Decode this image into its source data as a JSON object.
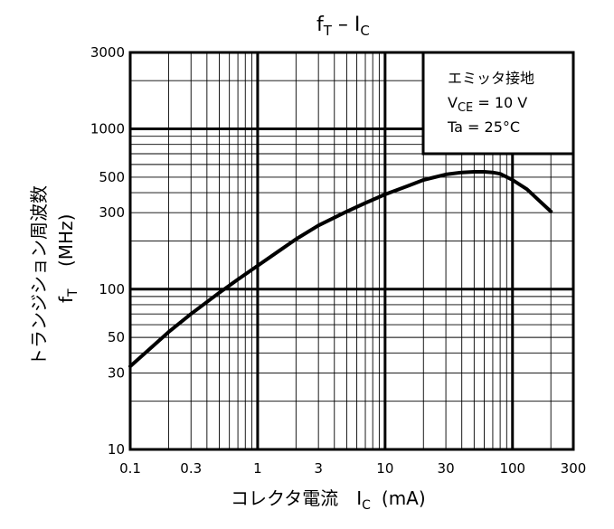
{
  "chart_data": {
    "type": "line",
    "title": "fT – IC",
    "title_main": "f",
    "title_sub1": "T",
    "title_dash": " – I",
    "title_sub2": "C",
    "xlabel_main": "コレクタ電流　I",
    "xlabel_sub": "C",
    "xlabel_unit": "(mA)",
    "ylabel_line1": "トランジション周波数",
    "ylabel_line2": "(MHz)",
    "ylabel_sym": "f",
    "ylabel_sym_sub": "T",
    "x_scale": "log",
    "y_scale": "log",
    "xlim": [
      0.1,
      300
    ],
    "ylim": [
      10,
      3000
    ],
    "x_ticks": [
      {
        "value": 0.1,
        "label": "0.1"
      },
      {
        "value": 0.3,
        "label": "0.3"
      },
      {
        "value": 1,
        "label": "1"
      },
      {
        "value": 3,
        "label": "3"
      },
      {
        "value": 10,
        "label": "10"
      },
      {
        "value": 30,
        "label": "30"
      },
      {
        "value": 100,
        "label": "100"
      },
      {
        "value": 300,
        "label": "300"
      }
    ],
    "y_ticks": [
      {
        "value": 10,
        "label": "10"
      },
      {
        "value": 30,
        "label": "30"
      },
      {
        "value": 50,
        "label": "50"
      },
      {
        "value": 100,
        "label": "100"
      },
      {
        "value": 300,
        "label": "300"
      },
      {
        "value": 500,
        "label": "500"
      },
      {
        "value": 1000,
        "label": "1000"
      },
      {
        "value": 3000,
        "label": "3000"
      }
    ],
    "grid": true,
    "legend_position": "top-right",
    "conditions": [
      {
        "text": "エミッタ接地"
      },
      {
        "main": "V",
        "sub": "CE",
        "rest": " = 10 V"
      },
      {
        "text": "Ta = 25°C"
      }
    ],
    "series": [
      {
        "x": [
          0.1,
          0.15,
          0.2,
          0.3,
          0.5,
          0.7,
          1,
          1.5,
          2,
          3,
          5,
          7,
          10,
          15,
          20,
          30,
          40,
          50,
          60,
          70,
          80,
          100,
          130,
          160,
          200
        ],
        "y": [
          33,
          44,
          54,
          70,
          95,
          115,
          140,
          175,
          205,
          250,
          305,
          345,
          390,
          440,
          480,
          520,
          535,
          540,
          540,
          535,
          525,
          480,
          420,
          360,
          305
        ]
      }
    ]
  }
}
